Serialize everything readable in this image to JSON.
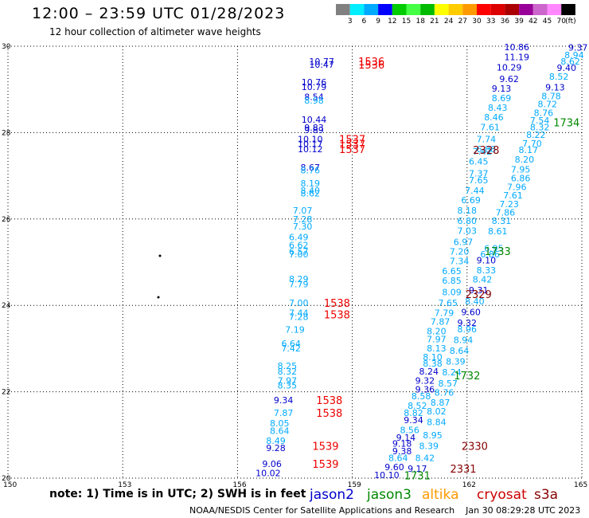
{
  "header": {
    "title": "12:00 – 23:59 UTC 01/28/2023",
    "subtitle": "12 hour collection of altimeter wave heights"
  },
  "footer": {
    "note": "note: 1) Time is in UTC; 2) SWH is in feet",
    "credit": "NOAA/NESDIS Center for Satellite Applications and Research",
    "generated": "Jan 30 08:29:28 UTC 2023"
  },
  "chart_data": {
    "type": "scatter",
    "title": "12:00 – 23:59 UTC 01/28/2023",
    "xlim": [
      150,
      165
    ],
    "ylim": [
      20,
      30
    ],
    "x_ticks": [
      "150",
      "153",
      "156",
      "159",
      "162",
      "165"
    ],
    "y_ticks": [
      "20",
      "22",
      "24",
      "26",
      "28",
      "30"
    ],
    "grid": true,
    "colorbar": {
      "unit": "(ft)",
      "labels": [
        "3",
        "6",
        "9",
        "12",
        "15",
        "18",
        "21",
        "24",
        "27",
        "30",
        "33",
        "36",
        "39",
        "42",
        "45",
        "70"
      ],
      "colors": [
        "#808080",
        "#00eeff",
        "#00aaff",
        "#0000ff",
        "#00cc00",
        "#44ff44",
        "#00bb00",
        "#ffff00",
        "#ffcc00",
        "#ff9900",
        "#ff0000",
        "#dd0000",
        "#aa0000",
        "#990099",
        "#cc66cc",
        "#ff88ff",
        "#000000"
      ]
    },
    "satellites": [
      {
        "name": "jason2",
        "color": "#0000cc"
      },
      {
        "name": "jason3",
        "color": "#008800"
      },
      {
        "name": "altika",
        "color": "#ff9900"
      },
      {
        "name": "cryosat",
        "color": "#cc0000"
      },
      {
        "name": "s3a",
        "color": "#880000"
      }
    ],
    "track_times": [
      {
        "label": "1536",
        "x": 159.5,
        "y": 29.65,
        "color": "#ee0000"
      },
      {
        "label": "1536",
        "x": 159.5,
        "y": 29.58,
        "color": "#ee0000"
      },
      {
        "label": "1537",
        "x": 159.0,
        "y": 27.85,
        "color": "#ee0000"
      },
      {
        "label": "1537",
        "x": 159.0,
        "y": 27.74,
        "color": "#ee0000"
      },
      {
        "label": "1537",
        "x": 159.0,
        "y": 27.62,
        "color": "#ee0000"
      },
      {
        "label": "1538",
        "x": 158.6,
        "y": 24.06,
        "color": "#ee0000"
      },
      {
        "label": "1538",
        "x": 158.6,
        "y": 23.79,
        "color": "#ee0000"
      },
      {
        "label": "1538",
        "x": 158.4,
        "y": 21.81,
        "color": "#ee0000"
      },
      {
        "label": "1538",
        "x": 158.4,
        "y": 21.51,
        "color": "#ee0000"
      },
      {
        "label": "1539",
        "x": 158.3,
        "y": 20.75,
        "color": "#ee0000"
      },
      {
        "label": "1539",
        "x": 158.3,
        "y": 20.33,
        "color": "#ee0000"
      },
      {
        "label": "1734",
        "x": 164.6,
        "y": 28.24,
        "color": "#008800"
      },
      {
        "label": "1733",
        "x": 162.8,
        "y": 25.26,
        "color": "#008800"
      },
      {
        "label": "1732",
        "x": 162.0,
        "y": 22.38,
        "color": "#008800"
      },
      {
        "label": "1731",
        "x": 160.7,
        "y": 20.06,
        "color": "#008800"
      },
      {
        "label": "2328",
        "x": 162.5,
        "y": 27.6,
        "color": "#880000"
      },
      {
        "label": "2329",
        "x": 162.3,
        "y": 24.26,
        "color": "#880000"
      },
      {
        "label": "2330",
        "x": 162.2,
        "y": 20.75,
        "color": "#880000"
      },
      {
        "label": "2331",
        "x": 161.9,
        "y": 20.22,
        "color": "#880000"
      }
    ],
    "points": [
      {
        "x": 158.2,
        "y": 29.65,
        "v": "10.77",
        "c": "#0000cc"
      },
      {
        "x": 158.2,
        "y": 29.58,
        "v": "10.47",
        "c": "#0000cc"
      },
      {
        "x": 158.0,
        "y": 29.17,
        "v": "10.76",
        "c": "#0000cc"
      },
      {
        "x": 158.0,
        "y": 29.06,
        "v": "10.79",
        "c": "#0000cc"
      },
      {
        "x": 158.0,
        "y": 28.83,
        "v": "8.54",
        "c": "#0000cc"
      },
      {
        "x": 158.0,
        "y": 28.75,
        "v": "8.98",
        "c": "#00aaff"
      },
      {
        "x": 158.0,
        "y": 28.3,
        "v": "10.44",
        "c": "#0000cc"
      },
      {
        "x": 158.0,
        "y": 28.12,
        "v": "9.83",
        "c": "#0000cc"
      },
      {
        "x": 158.0,
        "y": 28.06,
        "v": "9.89",
        "c": "#0000cc"
      },
      {
        "x": 157.9,
        "y": 27.85,
        "v": "10.10",
        "c": "#0000cc"
      },
      {
        "x": 157.9,
        "y": 27.74,
        "v": "10.17",
        "c": "#0000cc"
      },
      {
        "x": 157.9,
        "y": 27.62,
        "v": "10.12",
        "c": "#0000cc"
      },
      {
        "x": 157.9,
        "y": 27.2,
        "v": "8.67",
        "c": "#0000cc"
      },
      {
        "x": 157.9,
        "y": 27.13,
        "v": "8.76",
        "c": "#00aaff"
      },
      {
        "x": 157.9,
        "y": 26.83,
        "v": "8.19",
        "c": "#00aaff"
      },
      {
        "x": 157.9,
        "y": 26.66,
        "v": "8.40",
        "c": "#00aaff"
      },
      {
        "x": 157.9,
        "y": 26.6,
        "v": "8.62",
        "c": "#00aaff"
      },
      {
        "x": 157.7,
        "y": 26.2,
        "v": "7.07",
        "c": "#00aaff"
      },
      {
        "x": 157.7,
        "y": 26.0,
        "v": "7.28",
        "c": "#00aaff"
      },
      {
        "x": 157.7,
        "y": 25.83,
        "v": "7.30",
        "c": "#00aaff"
      },
      {
        "x": 157.6,
        "y": 25.58,
        "v": "6.49",
        "c": "#00aaff"
      },
      {
        "x": 157.6,
        "y": 25.4,
        "v": "6.62",
        "c": "#00aaff"
      },
      {
        "x": 157.6,
        "y": 25.25,
        "v": "6.57",
        "c": "#00aaff"
      },
      {
        "x": 157.6,
        "y": 25.18,
        "v": "7.00",
        "c": "#00aaff"
      },
      {
        "x": 157.6,
        "y": 24.61,
        "v": "8.29",
        "c": "#00aaff"
      },
      {
        "x": 157.6,
        "y": 24.49,
        "v": "7.79",
        "c": "#00aaff"
      },
      {
        "x": 157.6,
        "y": 24.06,
        "v": "7.00",
        "c": "#00aaff"
      },
      {
        "x": 157.6,
        "y": 23.83,
        "v": "7.44",
        "c": "#00aaff"
      },
      {
        "x": 157.6,
        "y": 23.74,
        "v": "7.28",
        "c": "#00aaff"
      },
      {
        "x": 157.5,
        "y": 23.44,
        "v": "7.19",
        "c": "#00aaff"
      },
      {
        "x": 157.4,
        "y": 23.12,
        "v": "6.64",
        "c": "#00aaff"
      },
      {
        "x": 157.4,
        "y": 23.01,
        "v": "7.42",
        "c": "#00aaff"
      },
      {
        "x": 157.3,
        "y": 22.6,
        "v": "8.25",
        "c": "#00aaff"
      },
      {
        "x": 157.3,
        "y": 22.47,
        "v": "8.32",
        "c": "#00aaff"
      },
      {
        "x": 157.3,
        "y": 22.26,
        "v": "7.97",
        "c": "#00aaff"
      },
      {
        "x": 157.3,
        "y": 22.15,
        "v": "8.35",
        "c": "#00aaff"
      },
      {
        "x": 157.2,
        "y": 21.81,
        "v": "9.34",
        "c": "#0000cc"
      },
      {
        "x": 157.2,
        "y": 21.51,
        "v": "7.87",
        "c": "#00aaff"
      },
      {
        "x": 157.1,
        "y": 21.27,
        "v": "8.05",
        "c": "#00aaff"
      },
      {
        "x": 157.1,
        "y": 21.1,
        "v": "8.64",
        "c": "#00aaff"
      },
      {
        "x": 157.0,
        "y": 20.87,
        "v": "8.49",
        "c": "#00aaff"
      },
      {
        "x": 157.0,
        "y": 20.7,
        "v": "9.28",
        "c": "#0000cc"
      },
      {
        "x": 156.9,
        "y": 20.33,
        "v": "9.06",
        "c": "#0000cc"
      },
      {
        "x": 156.8,
        "y": 20.12,
        "v": "10.02",
        "c": "#0000cc"
      },
      {
        "x": 163.3,
        "y": 29.98,
        "v": "10.86",
        "c": "#0000cc"
      },
      {
        "x": 163.3,
        "y": 29.75,
        "v": "11.19",
        "c": "#0000cc"
      },
      {
        "x": 163.1,
        "y": 29.51,
        "v": "10.29",
        "c": "#0000cc"
      },
      {
        "x": 163.1,
        "y": 29.24,
        "v": "9.62",
        "c": "#0000cc"
      },
      {
        "x": 162.9,
        "y": 29.02,
        "v": "9.13",
        "c": "#0000cc"
      },
      {
        "x": 162.9,
        "y": 28.8,
        "v": "8.69",
        "c": "#00aaff"
      },
      {
        "x": 162.8,
        "y": 28.58,
        "v": "8.43",
        "c": "#00aaff"
      },
      {
        "x": 162.7,
        "y": 28.36,
        "v": "8.46",
        "c": "#00aaff"
      },
      {
        "x": 162.6,
        "y": 28.13,
        "v": "7.61",
        "c": "#00aaff"
      },
      {
        "x": 162.5,
        "y": 27.85,
        "v": "7.74",
        "c": "#00aaff"
      },
      {
        "x": 162.5,
        "y": 27.62,
        "v": "6.88",
        "c": "#00aaff"
      },
      {
        "x": 162.4,
        "y": 27.56,
        "v": "7.42",
        "c": "#00aaff"
      },
      {
        "x": 162.3,
        "y": 27.33,
        "v": "6.45",
        "c": "#00aaff"
      },
      {
        "x": 162.3,
        "y": 27.06,
        "v": "7.37",
        "c": "#00aaff"
      },
      {
        "x": 162.3,
        "y": 26.9,
        "v": "7.65",
        "c": "#00aaff"
      },
      {
        "x": 162.2,
        "y": 26.66,
        "v": "7.44",
        "c": "#00aaff"
      },
      {
        "x": 162.1,
        "y": 26.44,
        "v": "6.69",
        "c": "#00aaff"
      },
      {
        "x": 162.0,
        "y": 26.2,
        "v": "8.18",
        "c": "#00aaff"
      },
      {
        "x": 162.0,
        "y": 25.96,
        "v": "6.80",
        "c": "#00aaff"
      },
      {
        "x": 162.0,
        "y": 25.73,
        "v": "7.03",
        "c": "#00aaff"
      },
      {
        "x": 161.9,
        "y": 25.47,
        "v": "6.97",
        "c": "#00aaff"
      },
      {
        "x": 161.8,
        "y": 25.25,
        "v": "7.20",
        "c": "#00aaff"
      },
      {
        "x": 161.8,
        "y": 25.03,
        "v": "7.34",
        "c": "#00aaff"
      },
      {
        "x": 161.6,
        "y": 24.8,
        "v": "6.65",
        "c": "#00aaff"
      },
      {
        "x": 161.6,
        "y": 24.58,
        "v": "6.85",
        "c": "#00aaff"
      },
      {
        "x": 161.6,
        "y": 24.31,
        "v": "8.09",
        "c": "#00aaff"
      },
      {
        "x": 161.5,
        "y": 24.06,
        "v": "7.65",
        "c": "#00aaff"
      },
      {
        "x": 161.4,
        "y": 23.83,
        "v": "7.79",
        "c": "#00aaff"
      },
      {
        "x": 161.3,
        "y": 23.63,
        "v": "7.87",
        "c": "#00aaff"
      },
      {
        "x": 161.2,
        "y": 23.4,
        "v": "8.20",
        "c": "#00aaff"
      },
      {
        "x": 161.2,
        "y": 23.22,
        "v": "7.97",
        "c": "#00aaff"
      },
      {
        "x": 161.2,
        "y": 23.01,
        "v": "8.13",
        "c": "#00aaff"
      },
      {
        "x": 161.1,
        "y": 22.8,
        "v": "8.10",
        "c": "#00aaff"
      },
      {
        "x": 161.1,
        "y": 22.66,
        "v": "8.38",
        "c": "#00aaff"
      },
      {
        "x": 161.0,
        "y": 22.47,
        "v": "8.24",
        "c": "#0000cc"
      },
      {
        "x": 160.9,
        "y": 22.26,
        "v": "9.32",
        "c": "#0000cc"
      },
      {
        "x": 160.9,
        "y": 22.06,
        "v": "9.36",
        "c": "#0000cc"
      },
      {
        "x": 160.8,
        "y": 21.9,
        "v": "8.58",
        "c": "#00aaff"
      },
      {
        "x": 160.7,
        "y": 21.68,
        "v": "8.52",
        "c": "#00aaff"
      },
      {
        "x": 160.6,
        "y": 21.51,
        "v": "8.82",
        "c": "#00aaff"
      },
      {
        "x": 160.6,
        "y": 21.35,
        "v": "9.34",
        "c": "#0000cc"
      },
      {
        "x": 160.5,
        "y": 21.12,
        "v": "8.56",
        "c": "#00aaff"
      },
      {
        "x": 160.4,
        "y": 20.94,
        "v": "9.14",
        "c": "#0000cc"
      },
      {
        "x": 160.3,
        "y": 20.8,
        "v": "9.18",
        "c": "#0000cc"
      },
      {
        "x": 160.3,
        "y": 20.63,
        "v": "9.38",
        "c": "#0000cc"
      },
      {
        "x": 160.2,
        "y": 20.47,
        "v": "8.64",
        "c": "#00aaff"
      },
      {
        "x": 160.1,
        "y": 20.26,
        "v": "9.60",
        "c": "#0000cc"
      },
      {
        "x": 159.9,
        "y": 20.07,
        "v": "10.10",
        "c": "#0000cc"
      },
      {
        "x": 160.7,
        "y": 20.22,
        "v": "9.17",
        "c": "#0000cc"
      },
      {
        "x": 160.9,
        "y": 20.47,
        "v": "8.42",
        "c": "#00aaff"
      },
      {
        "x": 161.0,
        "y": 20.75,
        "v": "8.39",
        "c": "#00aaff"
      },
      {
        "x": 161.1,
        "y": 21.0,
        "v": "8.95",
        "c": "#00aaff"
      },
      {
        "x": 161.2,
        "y": 21.3,
        "v": "8.84",
        "c": "#00aaff"
      },
      {
        "x": 161.2,
        "y": 21.55,
        "v": "8.02",
        "c": "#00aaff"
      },
      {
        "x": 161.3,
        "y": 21.75,
        "v": "8.87",
        "c": "#00aaff"
      },
      {
        "x": 161.4,
        "y": 21.98,
        "v": "8.76",
        "c": "#00aaff"
      },
      {
        "x": 161.5,
        "y": 22.2,
        "v": "8.57",
        "c": "#00aaff"
      },
      {
        "x": 161.6,
        "y": 22.45,
        "v": "8.24",
        "c": "#00aaff"
      },
      {
        "x": 161.7,
        "y": 22.7,
        "v": "8.39",
        "c": "#00aaff"
      },
      {
        "x": 161.8,
        "y": 22.95,
        "v": "8.64",
        "c": "#00aaff"
      },
      {
        "x": 161.9,
        "y": 23.2,
        "v": "8.94",
        "c": "#00aaff"
      },
      {
        "x": 162.0,
        "y": 23.45,
        "v": "8.96",
        "c": "#00aaff"
      },
      {
        "x": 162.0,
        "y": 23.6,
        "v": "9.32",
        "c": "#0000cc"
      },
      {
        "x": 162.1,
        "y": 23.85,
        "v": "9.60",
        "c": "#0000cc"
      },
      {
        "x": 162.2,
        "y": 24.1,
        "v": "8.40",
        "c": "#00aaff"
      },
      {
        "x": 162.3,
        "y": 24.35,
        "v": "9.31",
        "c": "#0000cc"
      },
      {
        "x": 162.4,
        "y": 24.6,
        "v": "8.42",
        "c": "#00aaff"
      },
      {
        "x": 162.5,
        "y": 24.82,
        "v": "8.33",
        "c": "#00aaff"
      },
      {
        "x": 162.5,
        "y": 25.05,
        "v": "9.10",
        "c": "#0000cc"
      },
      {
        "x": 162.6,
        "y": 25.18,
        "v": "6.86",
        "c": "#00aaff"
      },
      {
        "x": 162.7,
        "y": 25.32,
        "v": "6.95",
        "c": "#00aaff"
      },
      {
        "x": 162.8,
        "y": 25.72,
        "v": "8.61",
        "c": "#00aaff"
      },
      {
        "x": 162.9,
        "y": 25.96,
        "v": "8.31",
        "c": "#00aaff"
      },
      {
        "x": 163.0,
        "y": 26.15,
        "v": "7.86",
        "c": "#00aaff"
      },
      {
        "x": 163.1,
        "y": 26.35,
        "v": "7.23",
        "c": "#00aaff"
      },
      {
        "x": 163.2,
        "y": 26.55,
        "v": "7.61",
        "c": "#00aaff"
      },
      {
        "x": 163.3,
        "y": 26.74,
        "v": "7.96",
        "c": "#00aaff"
      },
      {
        "x": 163.4,
        "y": 26.95,
        "v": "6.86",
        "c": "#00aaff"
      },
      {
        "x": 163.4,
        "y": 27.15,
        "v": "7.95",
        "c": "#00aaff"
      },
      {
        "x": 163.5,
        "y": 27.38,
        "v": "8.20",
        "c": "#00aaff"
      },
      {
        "x": 163.6,
        "y": 27.6,
        "v": "8.17",
        "c": "#00aaff"
      },
      {
        "x": 163.7,
        "y": 27.75,
        "v": "7.70",
        "c": "#00aaff"
      },
      {
        "x": 163.8,
        "y": 27.95,
        "v": "8.22",
        "c": "#00aaff"
      },
      {
        "x": 163.9,
        "y": 28.13,
        "v": "8.32",
        "c": "#00aaff"
      },
      {
        "x": 163.9,
        "y": 28.28,
        "v": "7.54",
        "c": "#00aaff"
      },
      {
        "x": 164.0,
        "y": 28.46,
        "v": "8.76",
        "c": "#00aaff"
      },
      {
        "x": 164.1,
        "y": 28.66,
        "v": "8.72",
        "c": "#00aaff"
      },
      {
        "x": 164.2,
        "y": 28.85,
        "v": "8.78",
        "c": "#00aaff"
      },
      {
        "x": 164.3,
        "y": 29.05,
        "v": "9.13",
        "c": "#0000cc"
      },
      {
        "x": 164.4,
        "y": 29.3,
        "v": "8.52",
        "c": "#00aaff"
      },
      {
        "x": 164.6,
        "y": 29.5,
        "v": "9.40",
        "c": "#0000cc"
      },
      {
        "x": 164.7,
        "y": 29.65,
        "v": "8.62",
        "c": "#00aaff"
      },
      {
        "x": 164.8,
        "y": 29.8,
        "v": "8.94",
        "c": "#00aaff"
      },
      {
        "x": 164.9,
        "y": 29.97,
        "v": "9.37",
        "c": "#0000cc"
      }
    ]
  }
}
